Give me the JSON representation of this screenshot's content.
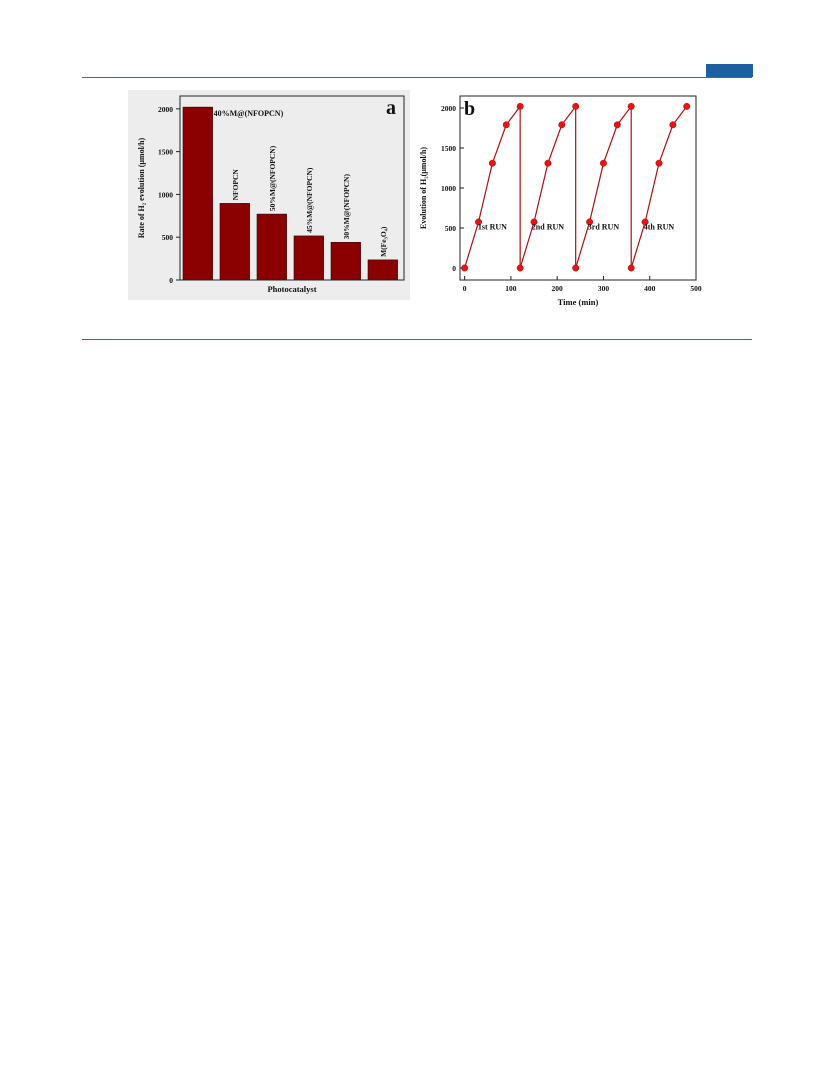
{
  "page": {
    "accent_color": "#1f5f9e"
  },
  "chart_data": [
    {
      "type": "bar",
      "panel_label": "a",
      "ylabel": "Rate of H₂ evolution (μmol/h)",
      "xlabel": "Photocatalyst",
      "yticks": [
        "0",
        "500",
        "1000",
        "1500",
        "2000"
      ],
      "ylim": [
        0,
        2150
      ],
      "categories": [
        "40%M@(NFOPCN)",
        "NFOPCN",
        "50%M@(NFOPCN)",
        "45%M@(NFOPCN)",
        "30%M@(NFOPCN)",
        "M(Fe₃O₄)"
      ],
      "values": [
        2020,
        895,
        770,
        515,
        440,
        235
      ],
      "bar_color": "#8b0000",
      "grid": false
    },
    {
      "type": "line",
      "panel_label": "b",
      "ylabel": "Evolution of H₂(μmol/h)",
      "xlabel": "Time (min)",
      "xticks": [
        "0",
        "100",
        "200",
        "300",
        "400",
        "500"
      ],
      "yticks": [
        "0",
        "500",
        "1000",
        "1500",
        "2000"
      ],
      "xlim": [
        -10,
        500
      ],
      "ylim": [
        -150,
        2150
      ],
      "series_color": "#e51515",
      "line_color": "#b01010",
      "grid": false,
      "runs": [
        {
          "label": "1st RUN",
          "x": [
            0,
            30,
            60,
            90,
            120
          ],
          "y": [
            0,
            575,
            1310,
            1790,
            2020
          ]
        },
        {
          "label": "2nd RUN",
          "x": [
            120,
            150,
            180,
            210,
            240
          ],
          "y": [
            0,
            575,
            1310,
            1790,
            2020
          ]
        },
        {
          "label": "3rd RUN",
          "x": [
            240,
            270,
            300,
            330,
            360
          ],
          "y": [
            0,
            575,
            1310,
            1790,
            2020
          ]
        },
        {
          "label": "4th RUN",
          "x": [
            360,
            390,
            420,
            450,
            480
          ],
          "y": [
            0,
            575,
            1310,
            1790,
            2020
          ]
        }
      ]
    }
  ]
}
